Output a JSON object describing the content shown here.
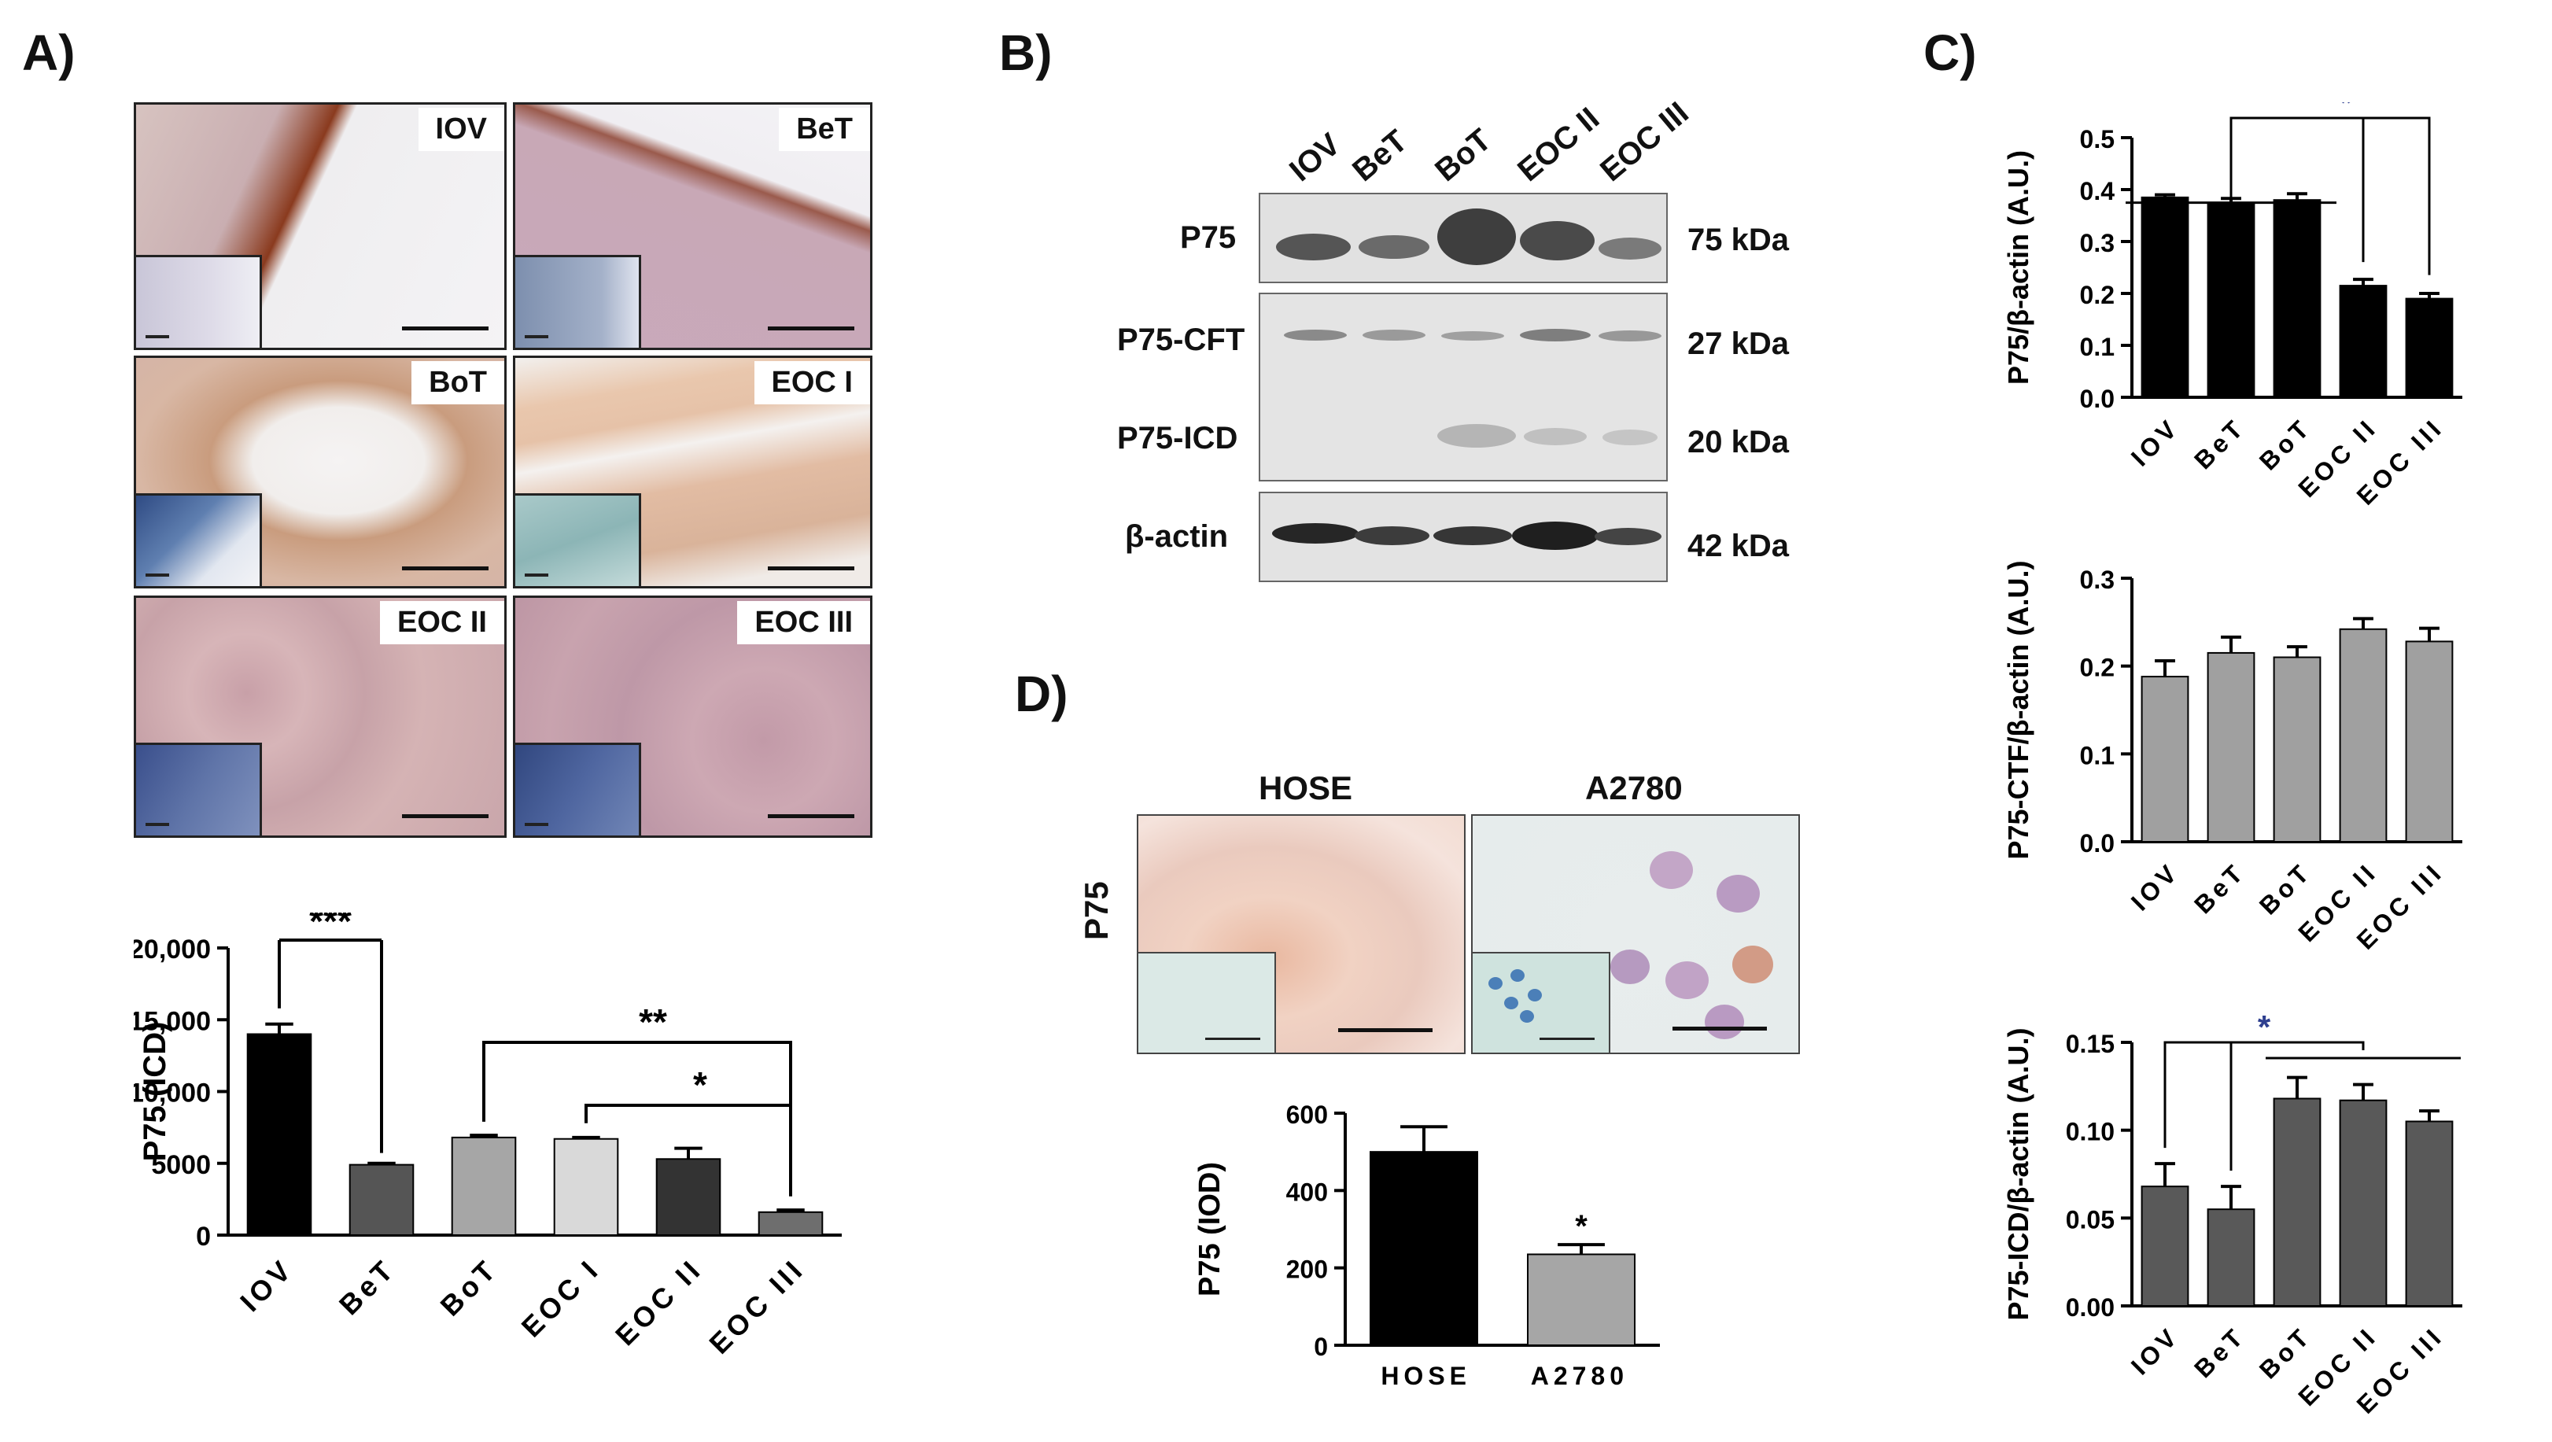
{
  "panels": {
    "a": "A)",
    "b": "B)",
    "c": "C)",
    "d": "D)"
  },
  "panel_a": {
    "micrographs": [
      {
        "label": "IOV"
      },
      {
        "label": "BeT"
      },
      {
        "label": "BoT"
      },
      {
        "label": "EOC I"
      },
      {
        "label": "EOC II"
      },
      {
        "label": "EOC III"
      }
    ]
  },
  "panel_b": {
    "lanes": [
      "IOV",
      "BeT",
      "BoT",
      "EOC II",
      "EOC III"
    ],
    "rows": [
      {
        "label": "P75",
        "kda": "75 kDa"
      },
      {
        "label": "P75-CFT",
        "kda": "27 kDa"
      },
      {
        "label": "P75-ICD",
        "kda": "20 kDa"
      },
      {
        "label": "β-actin",
        "kda": "42 kDa"
      }
    ]
  },
  "panel_d": {
    "ylabel_side": "P75",
    "micrographs": [
      {
        "label": "HOSE"
      },
      {
        "label": "A2780"
      }
    ]
  },
  "colors": {
    "black": "#000000",
    "dark_gray": "#555555",
    "light_gray": "#a6a6a6",
    "lighter_gray": "#d9d9d9",
    "charcoal": "#333333",
    "mid_gray": "#6e6e6e",
    "stain_tan": "#e7c9b6",
    "stain_brown": "#9a4a28",
    "hema_purple": "#b6a0c8",
    "significance_blue": "#2e3f8f"
  },
  "chart_data": [
    {
      "id": "A_bar",
      "type": "bar",
      "title": "",
      "xlabel": "",
      "ylabel": "P75 (ICD)",
      "categories": [
        "IOV",
        "BeT",
        "BoT",
        "EOC I",
        "EOC II",
        "EOC III"
      ],
      "values": [
        14000,
        4900,
        6800,
        6700,
        5300,
        1600
      ],
      "errors": [
        700,
        100,
        150,
        100,
        750,
        150
      ],
      "bar_colors": [
        "#000000",
        "#555555",
        "#a6a6a6",
        "#d9d9d9",
        "#333333",
        "#6e6e6e"
      ],
      "ylim": [
        0,
        20000
      ],
      "yticks": [
        "0",
        "5000",
        "10,000",
        "15,000",
        "20,000"
      ],
      "ytick_values": [
        0,
        5000,
        10000,
        15000,
        20000
      ],
      "annotations": [
        {
          "text": "***",
          "from": "IOV",
          "to": "BeT"
        },
        {
          "text": "**",
          "from": "BoT",
          "to": "EOC III"
        },
        {
          "text": "*",
          "from": "EOC I",
          "to": "EOC III"
        }
      ]
    },
    {
      "id": "C1_bar",
      "type": "bar",
      "title": "",
      "xlabel": "",
      "ylabel": "P75/β-actin (A.U.)",
      "categories": [
        "IOV",
        "BeT",
        "BoT",
        "EOC II",
        "EOC III"
      ],
      "values": [
        0.385,
        0.375,
        0.38,
        0.215,
        0.19
      ],
      "errors": [
        0.005,
        0.008,
        0.012,
        0.012,
        0.01
      ],
      "bar_colors": [
        "#000000",
        "#000000",
        "#000000",
        "#000000",
        "#000000"
      ],
      "ylim": [
        0,
        0.5
      ],
      "yticks": [
        "0.0",
        "0.1",
        "0.2",
        "0.3",
        "0.4",
        "0.5"
      ],
      "ytick_values": [
        0,
        0.1,
        0.2,
        0.3,
        0.4,
        0.5
      ],
      "annotations": [
        {
          "text": "*",
          "color": "#2e3f8f"
        }
      ]
    },
    {
      "id": "C2_bar",
      "type": "bar",
      "title": "",
      "xlabel": "",
      "ylabel": "P75-CTF/β-actin (A.U.)",
      "categories": [
        "IOV",
        "BeT",
        "BoT",
        "EOC II",
        "EOC III"
      ],
      "values": [
        0.188,
        0.215,
        0.21,
        0.242,
        0.228
      ],
      "errors": [
        0.018,
        0.018,
        0.012,
        0.012,
        0.015
      ],
      "bar_colors": [
        "#a0a0a0",
        "#a0a0a0",
        "#a0a0a0",
        "#a0a0a0",
        "#a0a0a0"
      ],
      "ylim": [
        0,
        0.3
      ],
      "yticks": [
        "0.0",
        "0.1",
        "0.2",
        "0.3"
      ],
      "ytick_values": [
        0,
        0.1,
        0.2,
        0.3
      ]
    },
    {
      "id": "C3_bar",
      "type": "bar",
      "title": "",
      "xlabel": "",
      "ylabel": "P75-ICD/β-actin (A.U.)",
      "categories": [
        "IOV",
        "BeT",
        "BoT",
        "EOC II",
        "EOC III"
      ],
      "values": [
        0.068,
        0.055,
        0.118,
        0.117,
        0.105
      ],
      "errors": [
        0.013,
        0.013,
        0.012,
        0.009,
        0.006
      ],
      "bar_colors": [
        "#595959",
        "#595959",
        "#595959",
        "#595959",
        "#595959"
      ],
      "ylim": [
        0,
        0.15
      ],
      "yticks": [
        "0.00",
        "0.05",
        "0.10",
        "0.15"
      ],
      "ytick_values": [
        0,
        0.05,
        0.1,
        0.15
      ],
      "annotations": [
        {
          "text": "*",
          "color": "#2e3f8f"
        }
      ]
    },
    {
      "id": "D_bar",
      "type": "bar",
      "title": "",
      "xlabel": "",
      "ylabel": "P75 (IOD)",
      "categories": [
        "HOSE",
        "A2780"
      ],
      "values": [
        500,
        235
      ],
      "errors": [
        65,
        25
      ],
      "bar_colors": [
        "#000000",
        "#a6a6a6"
      ],
      "ylim": [
        0,
        600
      ],
      "yticks": [
        "0",
        "200",
        "400",
        "600"
      ],
      "ytick_values": [
        0,
        200,
        400,
        600
      ],
      "annotations": [
        {
          "text": "*",
          "over": "A2780"
        }
      ]
    }
  ]
}
